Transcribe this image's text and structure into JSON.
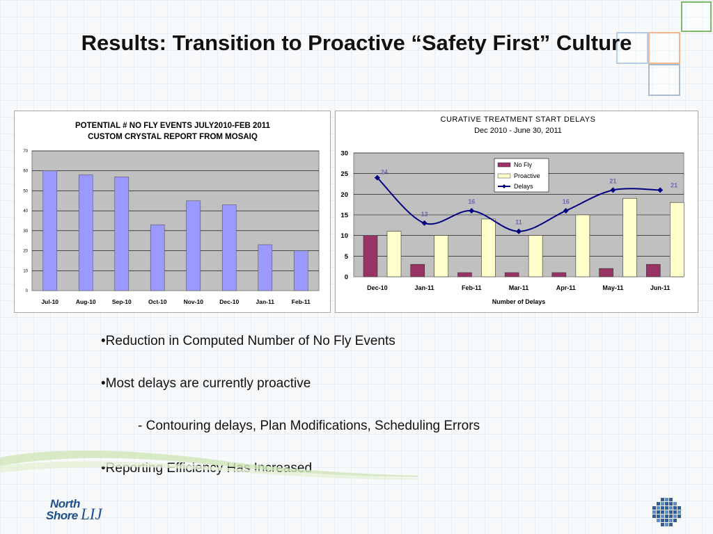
{
  "slide": {
    "title": "Results: Transition to Proactive “Safety First” Culture",
    "bullets": [
      "•Reduction in Computed Number of No Fly Events",
      "•Most delays are currently proactive",
      "- Contouring delays, Plan Modifications, Scheduling Errors",
      "•Reporting Efficiency Has Increased"
    ],
    "logo": {
      "line1": "North",
      "line2": "Shore",
      "mark": "LIJ"
    }
  },
  "colors": {
    "bar_blue": "#9999ff",
    "no_fly": "#993366",
    "proactive": "#ffffcc",
    "delays_line": "#000080",
    "label_text": "#6a6ab0",
    "plot_bg": "#c0c0c0"
  },
  "chart_data": [
    {
      "type": "bar",
      "title": "POTENTIAL # NO FLY EVENTS JULY2010-FEB 2011",
      "subtitle": "CUSTOM CRYSTAL REPORT FROM MOSAIQ",
      "categories": [
        "Jul-10",
        "Aug-10",
        "Sep-10",
        "Oct-10",
        "Nov-10",
        "Dec-10",
        "Jan-11",
        "Feb-11"
      ],
      "values": [
        60,
        58,
        57,
        33,
        45,
        43,
        23,
        20
      ],
      "ylim": [
        0,
        70
      ],
      "yticks": [
        0,
        10,
        20,
        30,
        40,
        50,
        60,
        70
      ],
      "xlabel": "",
      "ylabel": "",
      "grid": true,
      "legend": "none"
    },
    {
      "type": "bar",
      "title": "CURATIVE TREATMENT START DELAYS",
      "subtitle": "Dec 2010 - June 30, 2011",
      "categories": [
        "Dec-10",
        "Jan-11",
        "Feb-11",
        "Mar-11",
        "Apr-11",
        "May-11",
        "Jun-11"
      ],
      "series": [
        {
          "name": "No Fly",
          "type": "bar",
          "values": [
            10,
            3,
            1,
            1,
            1,
            2,
            3
          ]
        },
        {
          "name": "Proactive",
          "type": "bar",
          "values": [
            11,
            10,
            14,
            10,
            15,
            19,
            18
          ]
        },
        {
          "name": "Delays",
          "type": "line",
          "values": [
            24,
            13,
            16,
            11,
            16,
            21,
            21
          ]
        }
      ],
      "data_labels": [
        "24",
        "13",
        "16",
        "11",
        "16",
        "21",
        "21"
      ],
      "ylim": [
        0,
        30
      ],
      "yticks": [
        0,
        5,
        10,
        15,
        20,
        25,
        30
      ],
      "xlabel": "Number of Delays",
      "ylabel": "",
      "grid": true,
      "legend": "top-right"
    }
  ]
}
